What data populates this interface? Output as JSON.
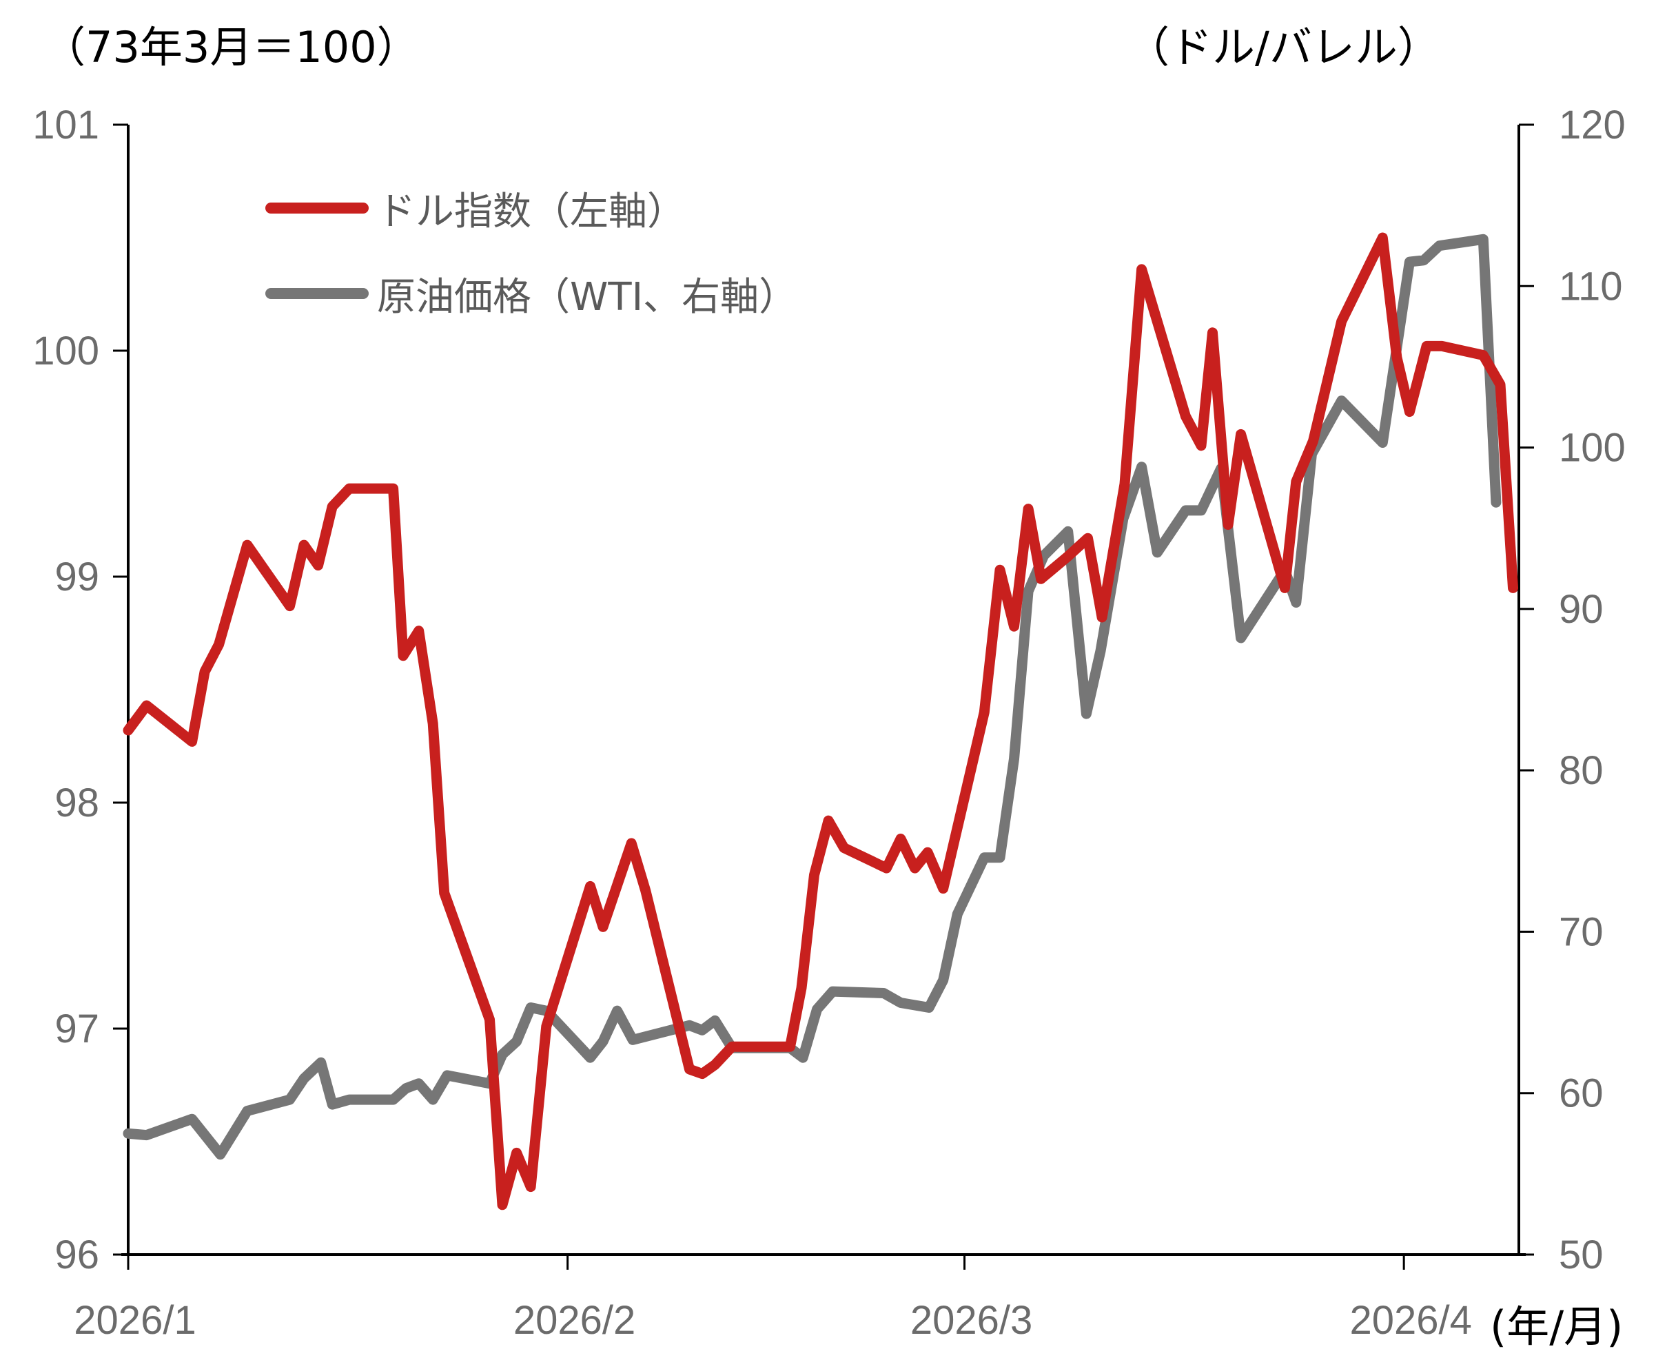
{
  "header": {
    "left_unit": "（73年3月＝100）",
    "right_unit": "（ドル/バレル）",
    "x_unit": "(年/月)"
  },
  "legend": {
    "items": [
      {
        "label": "ドル指数（左軸）",
        "color": "#c8201e"
      },
      {
        "label": "原油価格（WTI、右軸）",
        "color": "#767676"
      }
    ]
  },
  "chart_data": {
    "type": "line",
    "title": "",
    "xlabel": "(年/月)",
    "ylabel_left": "（73年3月＝100）",
    "ylabel_right": "（ドル/バレル）",
    "x_ticks": [
      {
        "label": "2026/1",
        "day": 0
      },
      {
        "label": "2026/2",
        "day": 31
      },
      {
        "label": "2026/3",
        "day": 59
      },
      {
        "label": "2026/4",
        "day": 90
      }
    ],
    "x_range_days": [
      0,
      98
    ],
    "y_left": {
      "min": 96,
      "max": 101,
      "ticks": [
        96,
        97,
        98,
        99,
        100,
        101
      ]
    },
    "y_right": {
      "min": 50,
      "max": 120,
      "ticks": [
        50,
        60,
        70,
        80,
        90,
        100,
        110,
        120
      ]
    },
    "grid": false,
    "legend_position": "upper-left",
    "series": [
      {
        "name": "ドル指数（左軸）",
        "axis": "left",
        "color": "#c8201e",
        "days": [
          0,
          1.3,
          4.5,
          5.4,
          6.4,
          8.4,
          11.4,
          12.4,
          13.4,
          14.4,
          15.6,
          18.7,
          19.4,
          20.5,
          21.5,
          22.3,
          25.5,
          26.4,
          27.4,
          28.4,
          29.5,
          32.6,
          33.5,
          35.5,
          36.5,
          39.6,
          40.5,
          41.4,
          42.6,
          46.7,
          47.5,
          48.4,
          49.4,
          50.5,
          53.5,
          54.5,
          55.5,
          56.4,
          57.5,
          60.4,
          61.5,
          62.5,
          63.5,
          64.4,
          66.3,
          67.7,
          68.7,
          70.3,
          71.5,
          74.6,
          75.7,
          76.5,
          77.6,
          78.5,
          81.6,
          82.4,
          83.6,
          85.6,
          88.5,
          89.5,
          90.4,
          91.6,
          92.7,
          95.6,
          96.8,
          97.7
        ],
        "values": [
          98.32,
          98.43,
          98.27,
          98.58,
          98.7,
          99.14,
          98.87,
          99.14,
          99.05,
          99.31,
          99.39,
          99.39,
          98.65,
          98.76,
          98.35,
          97.6,
          97.04,
          96.22,
          96.45,
          96.3,
          97.01,
          97.63,
          97.45,
          97.82,
          97.61,
          96.82,
          96.8,
          96.84,
          96.92,
          96.92,
          97.18,
          97.68,
          97.92,
          97.8,
          97.71,
          97.84,
          97.71,
          97.78,
          97.62,
          98.4,
          99.03,
          98.78,
          99.3,
          98.99,
          99.09,
          99.17,
          98.82,
          99.41,
          100.36,
          99.71,
          99.58,
          100.08,
          99.23,
          99.63,
          98.95,
          99.42,
          99.6,
          100.13,
          100.5,
          99.97,
          99.73,
          100.02,
          100.02,
          99.98,
          99.85,
          98.95
        ]
      },
      {
        "name": "原油価格（WTI、右軸）",
        "axis": "right",
        "color": "#767676",
        "days": [
          0,
          1.3,
          4.5,
          6.5,
          8.4,
          11.4,
          12.4,
          13.6,
          14.4,
          15.6,
          18.7,
          19.6,
          20.5,
          21.5,
          22.5,
          25.5,
          26.4,
          27.4,
          28.4,
          29.5,
          32.6,
          33.5,
          34.5,
          35.6,
          39.6,
          40.5,
          41.4,
          42.6,
          46.7,
          47.6,
          48.6,
          49.7,
          53.3,
          54.5,
          56.5,
          57.5,
          58.5,
          60.4,
          61.5,
          62.5,
          63.5,
          64.6,
          66.3,
          67.6,
          68.6,
          70.2,
          71.5,
          72.6,
          74.6,
          75.7,
          77.1,
          78.5,
          81.6,
          82.4,
          83.5,
          85.6,
          88.5,
          90.4,
          91.4,
          92.5,
          95.6,
          96.5,
          97.7
        ],
        "values": [
          57.5,
          57.4,
          58.4,
          56.2,
          58.9,
          59.6,
          60.9,
          61.9,
          59.3,
          59.6,
          59.6,
          60.3,
          60.6,
          59.6,
          61.1,
          60.6,
          62.4,
          63.2,
          65.3,
          65.1,
          62.2,
          63.2,
          65.1,
          63.3,
          64.2,
          63.9,
          64.5,
          62.8,
          62.8,
          62.2,
          65.2,
          66.3,
          66.2,
          65.6,
          65.3,
          67.0,
          71.1,
          74.6,
          74.6,
          80.7,
          91.1,
          93.3,
          94.8,
          83.5,
          87.4,
          95.6,
          98.8,
          93.5,
          96.1,
          96.1,
          98.7,
          88.2,
          92.4,
          90.4,
          99.6,
          102.9,
          100.3,
          111.5,
          111.6,
          112.5,
          112.9,
          96.6
        ]
      }
    ]
  }
}
